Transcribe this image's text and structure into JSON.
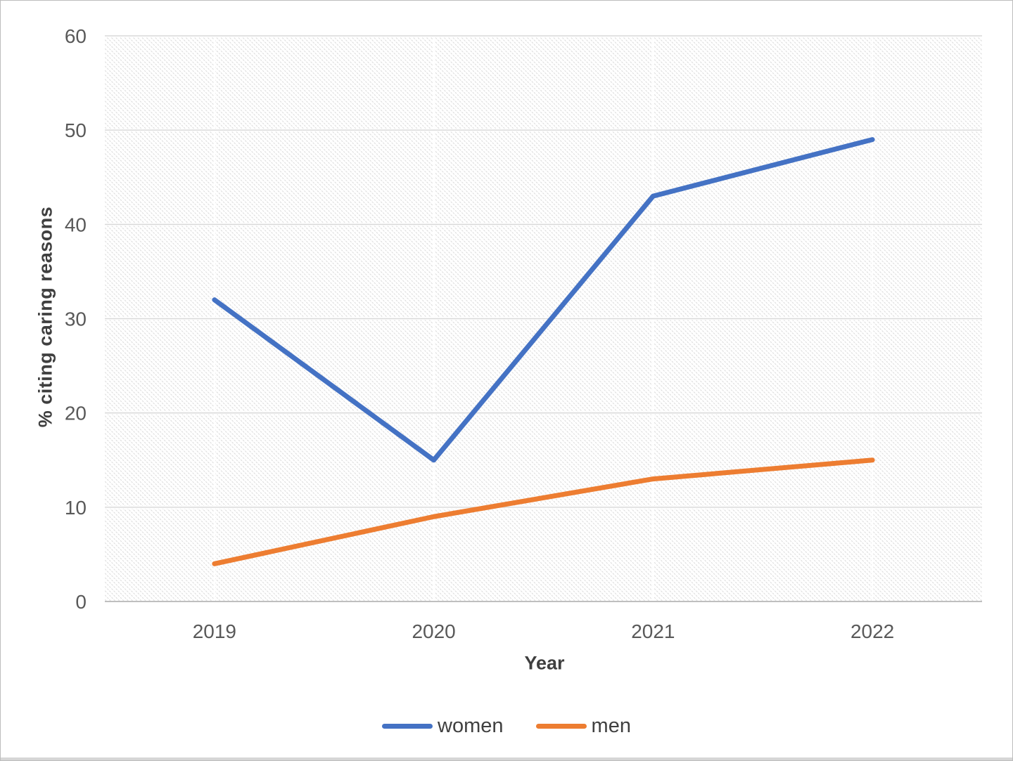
{
  "chart_data": {
    "type": "line",
    "categories": [
      "2019",
      "2020",
      "2021",
      "2022"
    ],
    "series": [
      {
        "name": "women",
        "color": "#4472C4",
        "values": [
          32,
          15,
          43,
          49
        ]
      },
      {
        "name": "men",
        "color": "#ED7D31",
        "values": [
          4,
          9,
          13,
          15
        ]
      }
    ],
    "xlabel": "Year",
    "ylabel": "% citing caring reasons",
    "ylim": [
      0,
      60
    ],
    "ytick_step": 10,
    "y_tick_labels": [
      "0",
      "10",
      "20",
      "30",
      "40",
      "50",
      "60"
    ],
    "x_tick_labels": [
      "2019",
      "2020",
      "2021",
      "2022"
    ],
    "grid": "horizontal",
    "legend_position": "bottom",
    "plot_background": "light-downward-diagonal-hatch",
    "gridline_color": "#d9d9d9",
    "axis_line_color": "#bfbfbf",
    "tick_label_color": "#595959"
  }
}
